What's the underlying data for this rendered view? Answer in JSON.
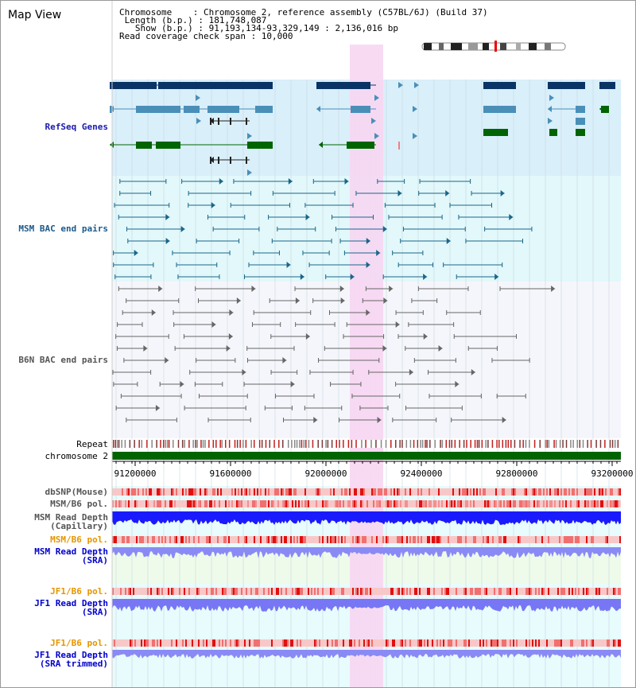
{
  "page_title": "Map View",
  "info": {
    "chromosome": "Chromosome    : Chromosome 2, reference assembly (C57BL/6J) (Build 37)",
    "length": " Length (b.p.) : 181,748,087",
    "show": "   Show (b.p.) : 91,193,134-93,329,149 : 2,136,016 bp",
    "coverage": "Read coverage check span : 10,000"
  },
  "tracks": {
    "refseq": "RefSeq Genes",
    "msm_bac": "MSM BAC end pairs",
    "b6n_bac": "B6N BAC end pairs",
    "repeat": "Repeat",
    "chromosome": "chromosome 2",
    "dbsnp": "dbSNP(Mouse)",
    "msm_b6_pol": "MSM/B6 pol.",
    "msm_read_depth_cap_1": "MSM Read Depth",
    "msm_read_depth_cap_2": "(Capillary)",
    "msm_b6_pol2": "MSM/B6 pol.",
    "msm_read_depth_sra_1": "MSM Read Depth",
    "msm_read_depth_sra_2": "(SRA)",
    "jf1_b6_pol": "JF1/B6 pol.",
    "jf1_read_depth_1": "JF1 Read Depth",
    "jf1_read_depth_2": "(SRA)",
    "jf1_b6_pol2": "JF1/B6 pol.",
    "jf1_read_depth_trim_1": "JF1 Read Depth",
    "jf1_read_depth_trim_2": "(SRA trimmed)"
  },
  "axis_ticks": [
    "91200000",
    "91600000",
    "92000000",
    "92400000",
    "92800000",
    "93200000"
  ],
  "colors": {
    "refseq_label": "#1a1aaa",
    "msm_label": "#1a5a8a",
    "b6n_label": "#555555",
    "orange_label": "#e69500",
    "blue_label": "#0000cc",
    "highlight": "#f7d6f2",
    "chromosome_bar": "#006400",
    "depth_blue": "#1a1aff",
    "depth_light": "#8080ff"
  }
}
